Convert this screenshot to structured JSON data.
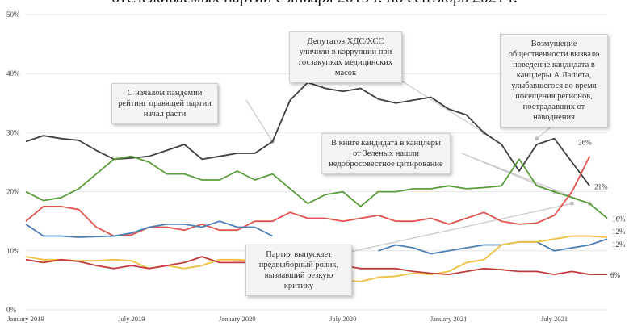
{
  "title": "отслеживаемых партий с января 2019 г. по сентябрь 2021 г.",
  "chart_data": {
    "type": "line",
    "ylim": [
      0,
      50
    ],
    "yticks": [
      "0%",
      "10%",
      "20%",
      "30%",
      "40%",
      "50%"
    ],
    "xticks": [
      "January 2019",
      "July 2019",
      "January 2020",
      "July 2020",
      "January 2021",
      "July 2021"
    ],
    "grid": true,
    "legend": "none",
    "series": [
      {
        "color": "#3f3f3f",
        "end_label": "21%",
        "points": [
          [
            0,
            28.5
          ],
          [
            1,
            29.5
          ],
          [
            2,
            29
          ],
          [
            3,
            28.7
          ],
          [
            4,
            27
          ],
          [
            5,
            25.5
          ],
          [
            6,
            25.7
          ],
          [
            7,
            26
          ],
          [
            8,
            27
          ],
          [
            9,
            28
          ],
          [
            10,
            25.5
          ],
          [
            11,
            26
          ],
          [
            12,
            26.5
          ],
          [
            13,
            26.5
          ],
          [
            14,
            28.5
          ],
          [
            15,
            35.5
          ],
          [
            16,
            38.5
          ],
          [
            17,
            37.5
          ],
          [
            18,
            37
          ],
          [
            19,
            37.5
          ],
          [
            20,
            35.7
          ],
          [
            21,
            35
          ],
          [
            22,
            35.5
          ],
          [
            23,
            36
          ],
          [
            24,
            34
          ],
          [
            25,
            33
          ],
          [
            26,
            30
          ],
          [
            27,
            28
          ],
          [
            28,
            23.5
          ],
          [
            29,
            28
          ],
          [
            30,
            29
          ],
          [
            31,
            25
          ],
          [
            32,
            21
          ]
        ]
      },
      {
        "color": "#5a9e3a",
        "end_label": "16%",
        "points": [
          [
            0,
            20
          ],
          [
            1,
            18.5
          ],
          [
            2,
            19
          ],
          [
            3,
            20.5
          ],
          [
            4,
            23
          ],
          [
            5,
            25.5
          ],
          [
            6,
            26
          ],
          [
            7,
            25
          ],
          [
            8,
            23
          ],
          [
            9,
            23
          ],
          [
            10,
            22
          ],
          [
            11,
            22
          ],
          [
            12,
            23.5
          ],
          [
            13,
            22
          ],
          [
            14,
            23
          ],
          [
            15,
            20.5
          ],
          [
            16,
            18
          ],
          [
            17,
            19.5
          ],
          [
            18,
            20
          ],
          [
            19,
            17.5
          ],
          [
            20,
            20
          ],
          [
            21,
            20
          ],
          [
            22,
            20.5
          ],
          [
            23,
            20.5
          ],
          [
            24,
            21
          ],
          [
            25,
            20.5
          ],
          [
            26,
            20.7
          ],
          [
            27,
            21
          ],
          [
            28,
            25.5
          ],
          [
            29,
            21
          ],
          [
            30,
            20
          ],
          [
            31,
            19
          ],
          [
            32,
            18
          ],
          [
            33,
            15.5
          ]
        ]
      },
      {
        "color": "#e0534d",
        "end_label": "26%",
        "points": [
          [
            0,
            15
          ],
          [
            1,
            17.5
          ],
          [
            2,
            17.5
          ],
          [
            3,
            17
          ],
          [
            4,
            14
          ],
          [
            5,
            12.5
          ],
          [
            6,
            12.7
          ],
          [
            7,
            14
          ],
          [
            8,
            14
          ],
          [
            9,
            13.5
          ],
          [
            10,
            14.5
          ],
          [
            11,
            13.5
          ],
          [
            12,
            13.5
          ],
          [
            13,
            15
          ],
          [
            14,
            15
          ],
          [
            15,
            16.5
          ],
          [
            16,
            15.5
          ],
          [
            17,
            15.5
          ],
          [
            18,
            15
          ],
          [
            19,
            15.5
          ],
          [
            20,
            16
          ],
          [
            21,
            15
          ],
          [
            22,
            15
          ],
          [
            23,
            15.5
          ],
          [
            24,
            14.5
          ],
          [
            25,
            15.5
          ],
          [
            26,
            16.5
          ],
          [
            27,
            15
          ],
          [
            28,
            14.5
          ],
          [
            29,
            14.7
          ],
          [
            30,
            16
          ],
          [
            31,
            20
          ],
          [
            32,
            26
          ]
        ]
      },
      {
        "color": "#4a7fb5",
        "end_label": "12%",
        "points": [
          [
            0,
            14.5
          ],
          [
            1,
            12.5
          ],
          [
            2,
            12.5
          ],
          [
            3,
            12.3
          ],
          [
            4,
            12.4
          ],
          [
            5,
            12.5
          ],
          [
            6,
            13
          ],
          [
            7,
            14
          ],
          [
            8,
            14.5
          ],
          [
            9,
            14.5
          ],
          [
            10,
            14
          ],
          [
            11,
            15
          ],
          [
            12,
            14
          ],
          [
            13,
            14
          ],
          [
            14,
            12.5
          ],
          [
            20,
            10
          ],
          [
            21,
            11
          ],
          [
            22,
            10.5
          ],
          [
            23,
            9.5
          ],
          [
            24,
            10
          ],
          [
            25,
            10.5
          ],
          [
            26,
            11
          ],
          [
            27,
            11
          ],
          [
            28,
            11.5
          ],
          [
            29,
            11.5
          ],
          [
            30,
            10
          ],
          [
            31,
            10.5
          ],
          [
            32,
            11
          ],
          [
            33,
            12
          ]
        ]
      },
      {
        "color": "#f0c040",
        "end_label": "12%",
        "points": [
          [
            0,
            9
          ],
          [
            1,
            8.5
          ],
          [
            2,
            8.5
          ],
          [
            3,
            8.3
          ],
          [
            4,
            8.3
          ],
          [
            5,
            8.5
          ],
          [
            6,
            8.3
          ],
          [
            7,
            7
          ],
          [
            8,
            7.5
          ],
          [
            9,
            7
          ],
          [
            10,
            7.5
          ],
          [
            11,
            8.5
          ],
          [
            12,
            8.5
          ],
          [
            13,
            8.3
          ],
          [
            18,
            5
          ],
          [
            19,
            4.8
          ],
          [
            20,
            5.5
          ],
          [
            21,
            5.7
          ],
          [
            22,
            6.2
          ],
          [
            23,
            6
          ],
          [
            24,
            6.5
          ],
          [
            25,
            8
          ],
          [
            26,
            8.5
          ],
          [
            27,
            11
          ],
          [
            28,
            11.5
          ],
          [
            29,
            11.5
          ],
          [
            30,
            12
          ],
          [
            31,
            12.5
          ],
          [
            32,
            12.5
          ],
          [
            33,
            12.3
          ]
        ]
      },
      {
        "color": "#c23b3b",
        "end_label": "6%",
        "points": [
          [
            0,
            8.5
          ],
          [
            1,
            8
          ],
          [
            2,
            8.5
          ],
          [
            3,
            8.2
          ],
          [
            4,
            7.5
          ],
          [
            5,
            7
          ],
          [
            6,
            7.5
          ],
          [
            7,
            7
          ],
          [
            8,
            7.5
          ],
          [
            9,
            8
          ],
          [
            10,
            9
          ],
          [
            11,
            8
          ],
          [
            12,
            8
          ],
          [
            13,
            8
          ],
          [
            14,
            8.5
          ],
          [
            18,
            7.5
          ],
          [
            19,
            7
          ],
          [
            20,
            7
          ],
          [
            21,
            7
          ],
          [
            22,
            6.5
          ],
          [
            23,
            6.2
          ],
          [
            24,
            6
          ],
          [
            25,
            6.5
          ],
          [
            26,
            7
          ],
          [
            27,
            6.8
          ],
          [
            28,
            6.5
          ],
          [
            29,
            6.5
          ],
          [
            30,
            6
          ],
          [
            31,
            6.5
          ],
          [
            32,
            6
          ],
          [
            33,
            6
          ]
        ]
      }
    ],
    "annotations": [
      "С началом пандемии рейтинг правящей партии начал расти",
      "Депутатов ХДС/ХСС уличили в коррупции при госзакупках медицинских масок",
      "Возмущение общественности вызвало поведение кандидата в канцлеры А.Лашета, улыбавшегося во время посещения регионов, пострадавших от наводнения",
      "В книге кандидата в канцлеры от Зеленых нашли недобросовестное цитирование",
      "Партия выпускает предвыборный ролик, вызвавший резкую критику"
    ]
  }
}
